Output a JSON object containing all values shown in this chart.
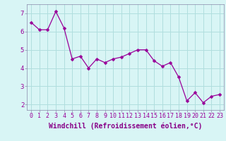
{
  "x": [
    0,
    1,
    2,
    3,
    4,
    5,
    6,
    7,
    8,
    9,
    10,
    11,
    12,
    13,
    14,
    15,
    16,
    17,
    18,
    19,
    20,
    21,
    22,
    23
  ],
  "y": [
    6.5,
    6.1,
    6.1,
    7.1,
    6.2,
    4.5,
    4.65,
    4.0,
    4.5,
    4.3,
    4.5,
    4.6,
    4.8,
    5.0,
    5.0,
    4.4,
    4.1,
    4.3,
    3.5,
    2.2,
    2.65,
    2.1,
    2.45,
    2.55
  ],
  "line_color": "#990099",
  "marker": "D",
  "marker_size": 2.5,
  "bg_color": "#d8f5f5",
  "grid_color": "#b0dede",
  "xlabel": "Windchill (Refroidissement éolien,°C)",
  "xlabel_color": "#880088",
  "ylabel_ticks": [
    2,
    3,
    4,
    5,
    6,
    7
  ],
  "xtick_labels": [
    "0",
    "1",
    "2",
    "3",
    "4",
    "5",
    "6",
    "7",
    "8",
    "9",
    "10",
    "11",
    "12",
    "13",
    "14",
    "15",
    "16",
    "17",
    "18",
    "19",
    "20",
    "21",
    "22",
    "23"
  ],
  "ylim": [
    1.7,
    7.5
  ],
  "xlim": [
    -0.5,
    23.5
  ],
  "tick_fontsize": 6.5,
  "xlabel_fontsize": 7.0,
  "spine_color": "#8888aa",
  "bottom_bar_color": "#8800aa"
}
